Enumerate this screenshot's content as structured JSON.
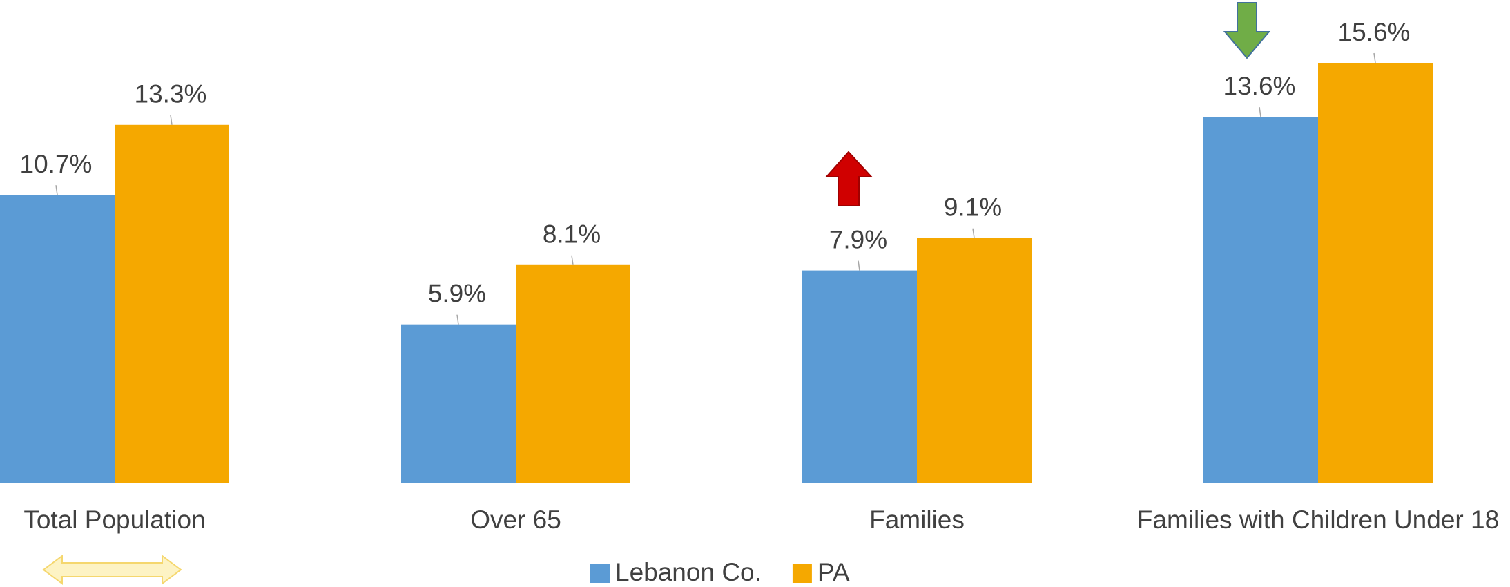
{
  "chart_data": {
    "type": "bar",
    "categories": [
      "Total Population",
      "Over 65",
      "Families",
      "Families with Children Under 18"
    ],
    "series": [
      {
        "name": "Lebanon Co.",
        "color": "#5b9bd5",
        "values": [
          10.7,
          5.9,
          7.9,
          13.6
        ],
        "value_labels": [
          "10.7%",
          "5.9%",
          "7.9%",
          "13.6%"
        ]
      },
      {
        "name": "PA",
        "color": "#f5a800",
        "values": [
          13.3,
          8.1,
          9.1,
          15.6
        ],
        "value_labels": [
          "13.3%",
          "8.1%",
          "9.1%",
          "15.6%"
        ]
      }
    ],
    "legend": "bottom"
  }
}
